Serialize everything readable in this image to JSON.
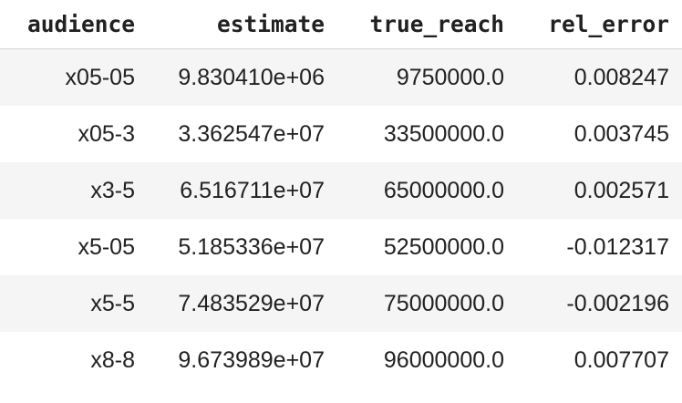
{
  "table": {
    "columns": [
      "audience",
      "estimate",
      "true_reach",
      "rel_error"
    ],
    "rows": [
      [
        "x05-05",
        "9.830410e+06",
        "9750000.0",
        "0.008247"
      ],
      [
        "x05-3",
        "3.362547e+07",
        "33500000.0",
        "0.003745"
      ],
      [
        "x3-5",
        "6.516711e+07",
        "65000000.0",
        "0.002571"
      ],
      [
        "x5-05",
        "5.185336e+07",
        "52500000.0",
        "-0.012317"
      ],
      [
        "x5-5",
        "7.483529e+07",
        "75000000.0",
        "-0.002196"
      ],
      [
        "x8-8",
        "9.673989e+07",
        "96000000.0",
        "0.007707"
      ]
    ]
  }
}
